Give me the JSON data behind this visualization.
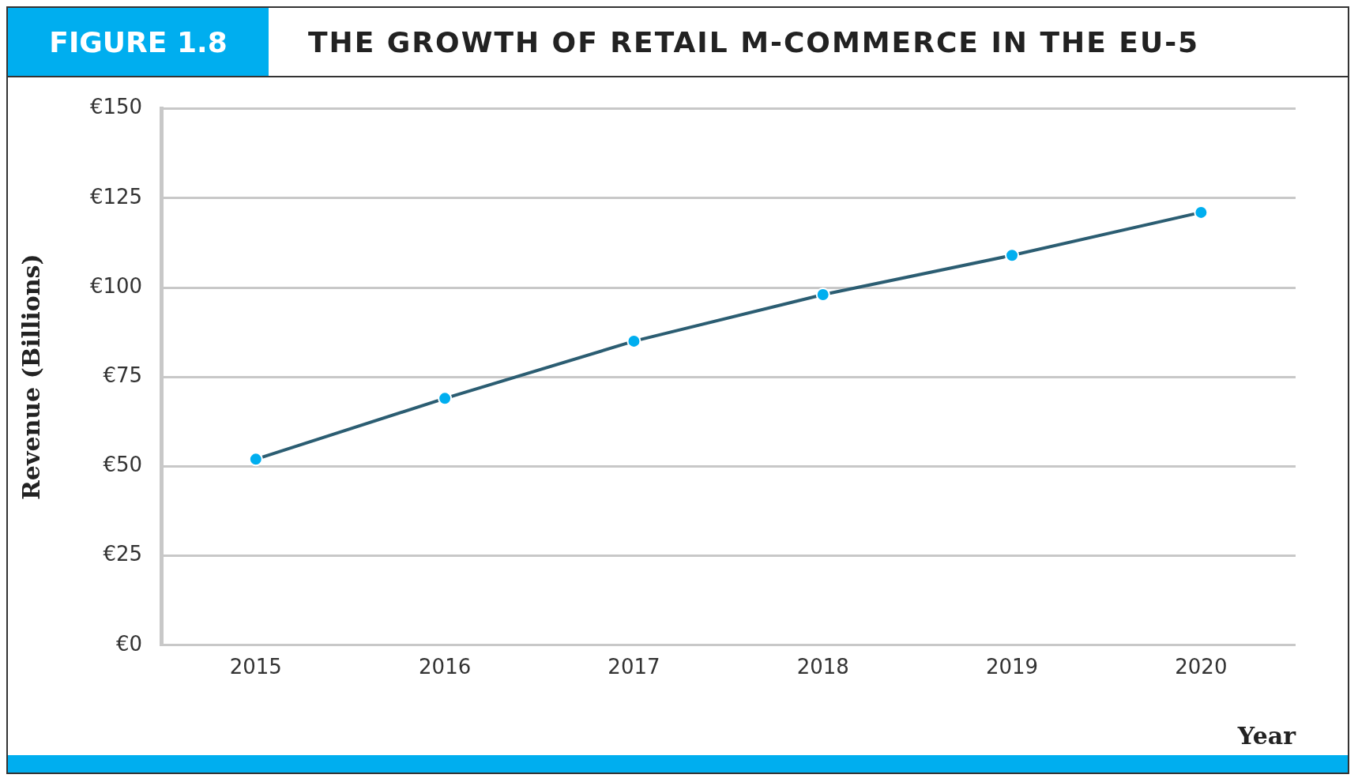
{
  "chart_data": {
    "type": "line",
    "subtitle": "FIGURE 1.8",
    "title": "THE GROWTH OF RETAIL M-COMMERCE IN THE EU-5",
    "xlabel": "Year",
    "ylabel": "Revenue (Billions)",
    "categories": [
      "2015",
      "2016",
      "2017",
      "2018",
      "2019",
      "2020"
    ],
    "series": [
      {
        "color": "#2b5d72",
        "values": [
          52,
          69,
          85,
          98,
          109,
          121
        ]
      }
    ],
    "ylim": [
      0,
      150
    ],
    "yticks": [
      {
        "value": 0,
        "label": "€0"
      },
      {
        "value": 25,
        "label": "€25"
      },
      {
        "value": 50,
        "label": "€50"
      },
      {
        "value": 75,
        "label": "€75"
      },
      {
        "value": 100,
        "label": "€100"
      },
      {
        "value": 125,
        "label": "€125"
      },
      {
        "value": 150,
        "label": "€150"
      }
    ],
    "grid": "y",
    "marker": "circle",
    "line_style": "solid",
    "legend": false
  }
}
